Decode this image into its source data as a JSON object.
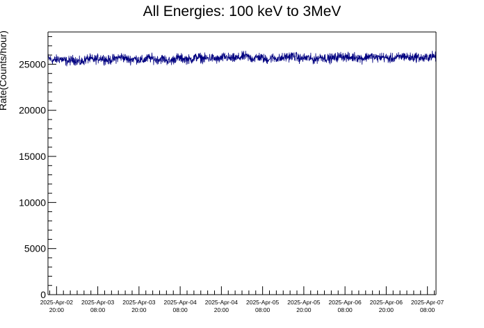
{
  "chart_data": {
    "type": "line",
    "title": "All Energies:  100 keV to 3MeV",
    "ylabel": "Rate(Counts/hour)",
    "xlabel": "",
    "ylim": [
      0,
      28500
    ],
    "yticks": [
      {
        "value": 0,
        "label": "0"
      },
      {
        "value": 5000,
        "label": "5000"
      },
      {
        "value": 10000,
        "label": "10000"
      },
      {
        "value": 15000,
        "label": "15000"
      },
      {
        "value": 20000,
        "label": "20000"
      },
      {
        "value": 25000,
        "label": "25000"
      }
    ],
    "xlim": [
      "2025-04-02 17:30",
      "2025-04-07 10:30"
    ],
    "xticks": [
      {
        "time": "2025-04-02 20:00",
        "line1": "2025-Apr-02",
        "line2": "20:00"
      },
      {
        "time": "2025-04-03 08:00",
        "line1": "2025-Apr-03",
        "line2": "08:00"
      },
      {
        "time": "2025-04-03 20:00",
        "line1": "2025-Apr-03",
        "line2": "20:00"
      },
      {
        "time": "2025-04-04 08:00",
        "line1": "2025-Apr-04",
        "line2": "08:00"
      },
      {
        "time": "2025-04-04 20:00",
        "line1": "2025-Apr-04",
        "line2": "20:00"
      },
      {
        "time": "2025-04-05 08:00",
        "line1": "2025-Apr-05",
        "line2": "08:00"
      },
      {
        "time": "2025-04-05 20:00",
        "line1": "2025-Apr-05",
        "line2": "20:00"
      },
      {
        "time": "2025-04-06 08:00",
        "line1": "2025-Apr-06",
        "line2": "08:00"
      },
      {
        "time": "2025-04-06 20:00",
        "line1": "2025-Apr-06",
        "line2": "20:00"
      },
      {
        "time": "2025-04-07 08:00",
        "line1": "2025-Apr-07",
        "line2": "08:00"
      }
    ],
    "series": [
      {
        "color": "#000080",
        "x": [
          "2025-04-02 17:30",
          "2025-04-02 19:00",
          "2025-04-02 21:00",
          "2025-04-02 23:00",
          "2025-04-03 01:00",
          "2025-04-03 03:00",
          "2025-04-03 05:00",
          "2025-04-03 07:00",
          "2025-04-03 09:00",
          "2025-04-03 11:00",
          "2025-04-03 13:00",
          "2025-04-03 15:00",
          "2025-04-03 17:00",
          "2025-04-03 19:00",
          "2025-04-03 21:00",
          "2025-04-03 23:00",
          "2025-04-04 01:00",
          "2025-04-04 03:00",
          "2025-04-04 05:00",
          "2025-04-04 07:00",
          "2025-04-04 09:00",
          "2025-04-04 11:00",
          "2025-04-04 13:00",
          "2025-04-04 15:00",
          "2025-04-04 17:00",
          "2025-04-04 19:00",
          "2025-04-04 21:00",
          "2025-04-04 23:00",
          "2025-04-05 01:00",
          "2025-04-05 03:00",
          "2025-04-05 05:00",
          "2025-04-05 07:00",
          "2025-04-05 09:00",
          "2025-04-05 11:00",
          "2025-04-05 13:00",
          "2025-04-05 15:00",
          "2025-04-05 17:00",
          "2025-04-05 19:00",
          "2025-04-05 21:00",
          "2025-04-05 23:00",
          "2025-04-06 01:00",
          "2025-04-06 03:00",
          "2025-04-06 05:00",
          "2025-04-06 07:00",
          "2025-04-06 09:00",
          "2025-04-06 11:00",
          "2025-04-06 13:00",
          "2025-04-06 15:00",
          "2025-04-06 17:00",
          "2025-04-06 19:00",
          "2025-04-06 21:00",
          "2025-04-06 23:00",
          "2025-04-07 01:00",
          "2025-04-07 03:00",
          "2025-04-07 05:00",
          "2025-04-07 07:00",
          "2025-04-07 09:00",
          "2025-04-07 10:30"
        ],
        "y": [
          25700,
          25400,
          25600,
          25300,
          25500,
          25200,
          25600,
          25500,
          25700,
          25400,
          25600,
          25800,
          25500,
          25600,
          25400,
          25700,
          25500,
          25600,
          25300,
          25700,
          25600,
          25500,
          25800,
          25600,
          25700,
          25500,
          25800,
          25600,
          25700,
          25900,
          25600,
          25800,
          25500,
          25700,
          25600,
          25800,
          25900,
          25600,
          25700,
          25500,
          25800,
          25600,
          25700,
          25900,
          25700,
          25800,
          25600,
          25900,
          25700,
          25800,
          25600,
          25700,
          25900,
          25700,
          25800,
          25600,
          25900,
          25800
        ],
        "min": 24300,
        "max": 27100
      }
    ]
  }
}
